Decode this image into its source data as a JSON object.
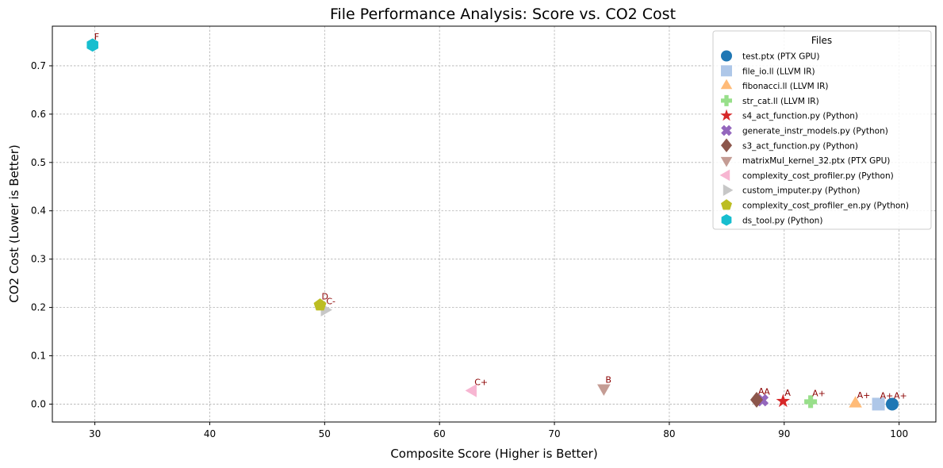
{
  "chart_data": {
    "type": "scatter",
    "title": "File Performance Analysis: Score vs. CO2 Cost",
    "xlabel": "Composite Score (Higher is Better)",
    "ylabel": "CO2 Cost (Lower is Better)",
    "xlim": [
      26.3,
      103.2
    ],
    "ylim": [
      -0.037,
      0.782
    ],
    "xticks": [
      30,
      40,
      50,
      60,
      70,
      80,
      90,
      100
    ],
    "yticks": [
      0.0,
      0.1,
      0.2,
      0.3,
      0.4,
      0.5,
      0.6,
      0.7
    ],
    "grid": true,
    "legend": {
      "title": "Files",
      "position": "top-right"
    },
    "series": [
      {
        "name": "test.ptx (PTX GPU)",
        "marker": "circle",
        "color": "#1f77b4",
        "x": 99.4,
        "y": 0.0,
        "grade": "A+"
      },
      {
        "name": "file_io.ll (LLVM IR)",
        "marker": "square",
        "color": "#aec7e8",
        "x": 98.2,
        "y": 0.0,
        "grade": "A+"
      },
      {
        "name": "fibonacci.ll (LLVM IR)",
        "marker": "triangle-up",
        "color": "#ffbb78",
        "x": 96.2,
        "y": 0.001,
        "grade": "A+"
      },
      {
        "name": "str_cat.ll (LLVM IR)",
        "marker": "plus",
        "color": "#98df8a",
        "x": 92.3,
        "y": 0.005,
        "grade": "A+"
      },
      {
        "name": "s4_act_function.py (Python)",
        "marker": "star",
        "color": "#d62728",
        "x": 89.9,
        "y": 0.006,
        "grade": "A"
      },
      {
        "name": "generate_instr_models.py (Python)",
        "marker": "x",
        "color": "#9467bd",
        "x": 88.1,
        "y": 0.008,
        "grade": "A"
      },
      {
        "name": "s3_act_function.py (Python)",
        "marker": "diamond",
        "color": "#8c564b",
        "x": 87.6,
        "y": 0.009,
        "grade": "A"
      },
      {
        "name": "matrixMul_kernel_32.ptx (PTX GPU)",
        "marker": "triangle-down",
        "color": "#c49c94",
        "x": 74.3,
        "y": 0.033,
        "grade": "B"
      },
      {
        "name": "complexity_cost_profiler.py (Python)",
        "marker": "triangle-left",
        "color": "#f7b6d2",
        "x": 62.9,
        "y": 0.028,
        "grade": "C+"
      },
      {
        "name": "custom_imputer.py (Python)",
        "marker": "triangle-right",
        "color": "#c7c7c7",
        "x": 50.0,
        "y": 0.195,
        "grade": "C-"
      },
      {
        "name": "complexity_cost_profiler_en.py (Python)",
        "marker": "pentagon",
        "color": "#bcbd22",
        "x": 49.6,
        "y": 0.205,
        "grade": "D"
      },
      {
        "name": "ds_tool.py (Python)",
        "marker": "hexagon",
        "color": "#17becf",
        "x": 29.8,
        "y": 0.743,
        "grade": "F"
      }
    ]
  }
}
